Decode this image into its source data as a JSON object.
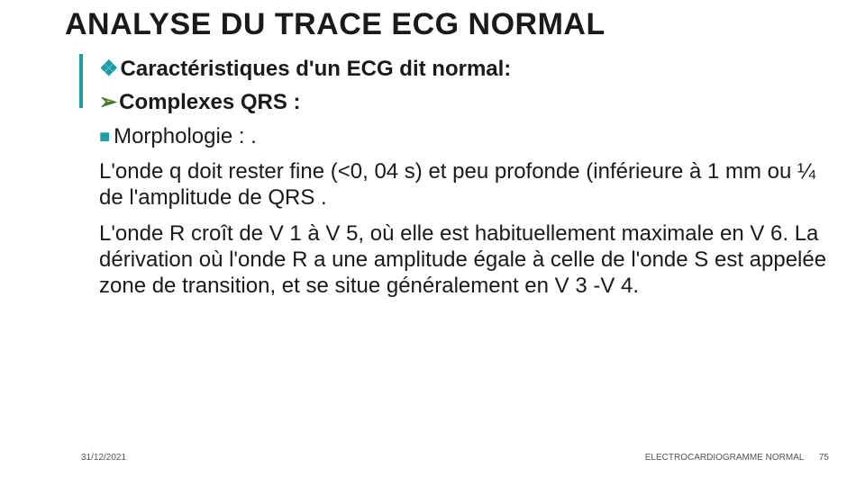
{
  "title": "ANALYSE DU TRACE ECG NORMAL",
  "lines": {
    "l1": "Caractéristiques d'un ECG dit normal:",
    "l2": "Complexes QRS :",
    "l3": "Morphologie : .",
    "p1": "L'onde q doit rester fine (<0, 04 s) et peu profonde (inférieure à 1 mm ou ¼ de l'amplitude de QRS .",
    "p2": "L'onde R croît de V 1 à V 5, où elle est habituellement maximale en  V 6. La dérivation où l'onde R a une amplitude égale à celle de l'onde S est appelée zone de transition, et se situe généralement en V 3 -V 4."
  },
  "bullets": {
    "diamond": "❖",
    "arrow": "➢",
    "square": "■"
  },
  "footer": {
    "date": "31/12/2021",
    "label": "ELECTROCARDIOGRAMME NORMAL",
    "page": "75"
  },
  "colors": {
    "accent": "#1f9ea8",
    "arrow": "#4a7a2a",
    "text": "#1a1a1a"
  }
}
